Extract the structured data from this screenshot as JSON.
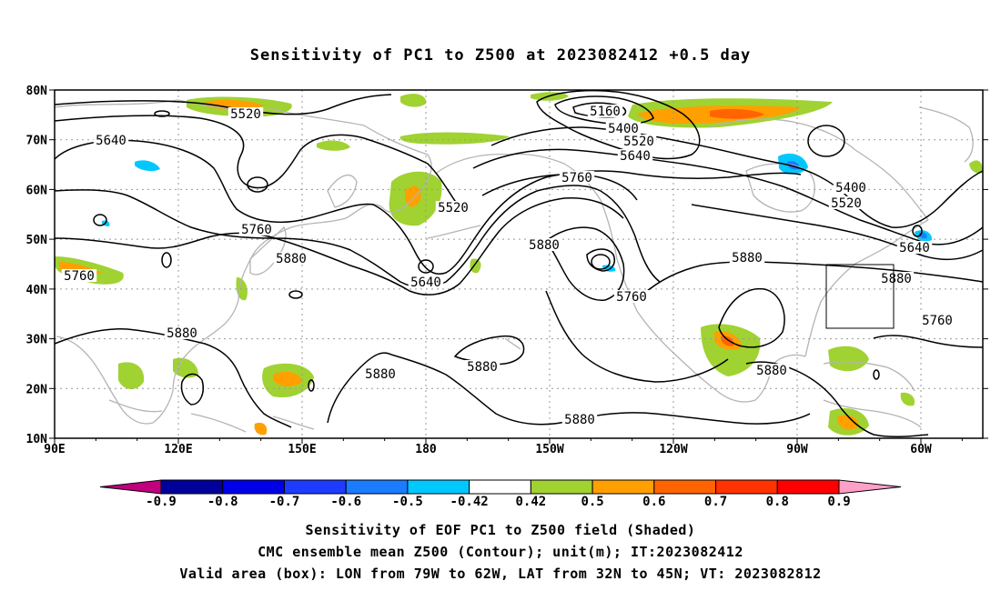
{
  "title": "Sensitivity of PC1 to Z500 at 2023082412 +0.5 day",
  "axes": {
    "lat_labels": [
      "80N",
      "70N",
      "60N",
      "50N",
      "40N",
      "30N",
      "20N",
      "10N"
    ],
    "lon_labels": [
      "90E",
      "120E",
      "150E",
      "180",
      "150W",
      "120W",
      "90W",
      "60W"
    ]
  },
  "contour_labels": [
    "5520",
    "5640",
    "5160",
    "5400",
    "5520",
    "5640",
    "5760",
    "5400",
    "5520",
    "5640",
    "5520",
    "5760",
    "5880",
    "5760",
    "5880",
    "5640",
    "5760",
    "5880",
    "5880",
    "5760",
    "5880",
    "5880",
    "5880",
    "5880",
    "5880"
  ],
  "colorbar": {
    "labels": [
      "-0.9",
      "-0.8",
      "-0.7",
      "-0.6",
      "-0.5",
      "-0.42",
      "0.42",
      "0.5",
      "0.6",
      "0.7",
      "0.8",
      "0.9"
    ],
    "colors": [
      "#c0007e",
      "#00009a",
      "#0000e8",
      "#1e3cff",
      "#1c7cff",
      "#00c8ff",
      "#ffffff",
      "#a0d232",
      "#ffa000",
      "#ff6400",
      "#ff3200",
      "#ff0000",
      "#ffa0c8"
    ]
  },
  "captions": [
    "Sensitivity of EOF PC1 to Z500 field (Shaded)",
    "CMC ensemble mean Z500 (Contour); unit(m); IT:2023082412",
    "Valid area (box): LON from 79W to 62W, LAT from 32N to 45N; VT: 2023082812"
  ],
  "colors": {
    "coast": "#b4b4b4",
    "grid": "#999999",
    "contour": "#000000",
    "pos_green": "#a0d232",
    "pos_orange": "#ffa000",
    "pos_orange2": "#ff6400",
    "neg_blue": "#00c8ff",
    "neg_blue2": "#1c7cff"
  }
}
